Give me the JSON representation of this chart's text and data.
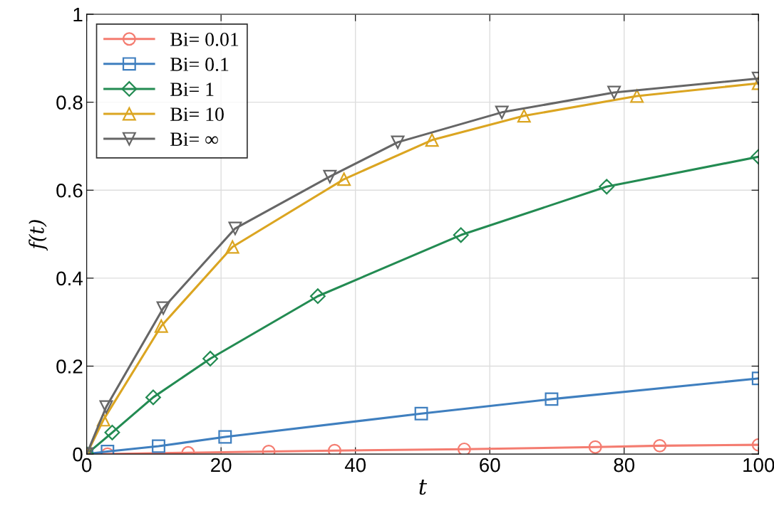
{
  "chart_data": {
    "type": "line",
    "xlabel": "t",
    "ylabel": "f(t)",
    "xlim": [
      0,
      100
    ],
    "xticks": [
      0,
      20,
      40,
      60,
      80,
      100
    ],
    "ylim": [
      0,
      1
    ],
    "yticks": [
      0,
      0.2,
      0.4,
      0.6,
      0.8,
      1
    ],
    "grid": true,
    "legend": "top left",
    "line_style": "solid",
    "series": [
      {
        "name": "Bi= 0.01",
        "color": "#f47c70",
        "marker": "circle",
        "x": [
          0,
          3.1,
          15.1,
          27.1,
          36.9,
          56.2,
          75.7,
          85.3,
          100
        ],
        "values": [
          0,
          0.0,
          0.003,
          0.006,
          0.008,
          0.011,
          0.016,
          0.019,
          0.021
        ]
      },
      {
        "name": "Bi= 0.1",
        "color": "#3f7fbf",
        "marker": "square",
        "x": [
          0,
          3.1,
          10.7,
          20.6,
          49.8,
          69.2,
          100
        ],
        "values": [
          0,
          0.006,
          0.018,
          0.039,
          0.092,
          0.125,
          0.172
        ]
      },
      {
        "name": "Bi= 1",
        "color": "#238b52",
        "marker": "diamond",
        "x": [
          0,
          3.8,
          9.9,
          18.4,
          34.4,
          55.7,
          77.4,
          100
        ],
        "values": [
          0,
          0.049,
          0.129,
          0.217,
          0.359,
          0.498,
          0.608,
          0.676
        ]
      },
      {
        "name": "Bi= 10",
        "color": "#dba521",
        "marker": "triangle",
        "x": [
          0,
          2.5,
          11.1,
          21.7,
          38.3,
          51.4,
          65.1,
          81.9,
          100
        ],
        "values": [
          0,
          0.078,
          0.291,
          0.471,
          0.625,
          0.714,
          0.769,
          0.814,
          0.843
        ]
      },
      {
        "name": "Bi= ∞",
        "color": "#666666",
        "marker": "triangle_down",
        "x": [
          0,
          2.9,
          11.4,
          22.1,
          36.2,
          46.3,
          61.8,
          78.5,
          100
        ],
        "values": [
          0,
          0.107,
          0.332,
          0.513,
          0.631,
          0.709,
          0.777,
          0.822,
          0.854
        ]
      }
    ]
  }
}
